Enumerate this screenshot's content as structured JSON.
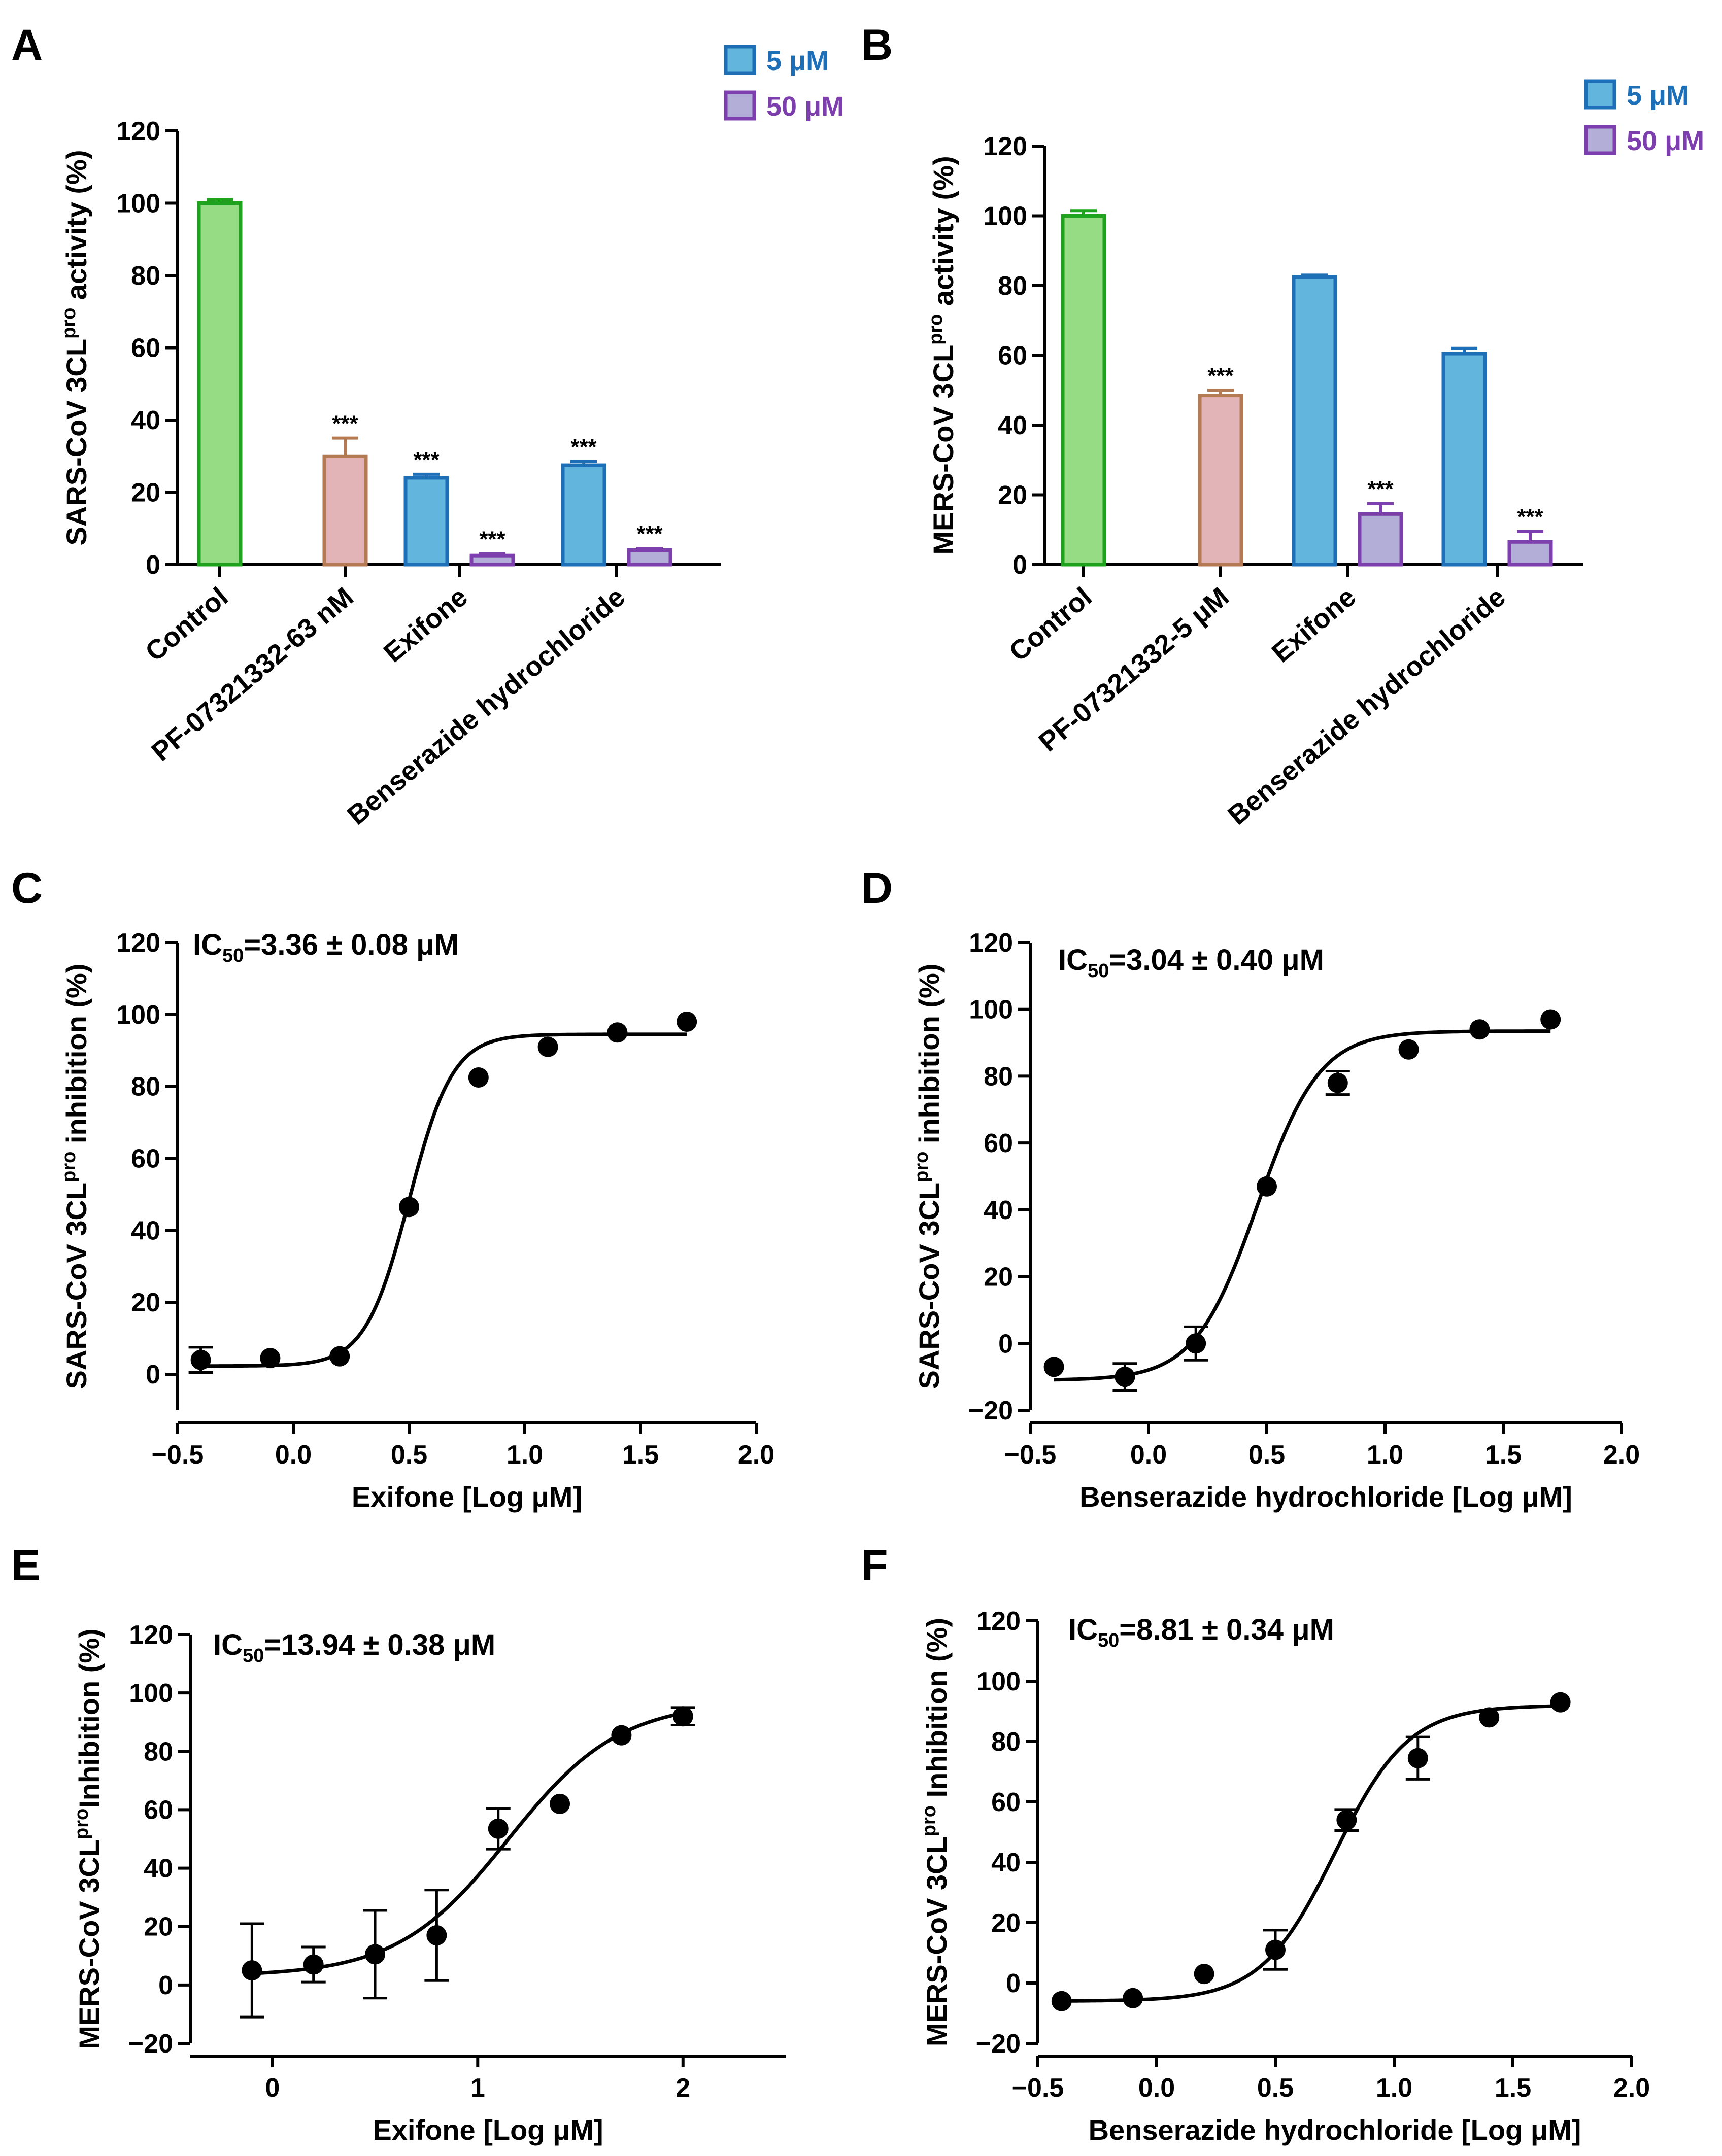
{
  "colors": {
    "control_fill": "#95DC84",
    "control_stroke": "#1FA31F",
    "pf_fill": "#E2B3B7",
    "pf_stroke": "#B47A53",
    "blue_fill": "#62B6DD",
    "blue_stroke": "#1D6FB8",
    "purple_fill": "#B3AED8",
    "purple_stroke": "#7E3FAE",
    "legend_blue_text": "#1D6FB8",
    "legend_purple_text": "#7E3FAE"
  },
  "chart_data": [
    {
      "id": "A",
      "panel": "A",
      "type": "bar",
      "ylabel_main": "SARS-CoV 3CL",
      "ylabel_sup": "pro",
      "ylabel_tail": " activity  (%)",
      "ylim": [
        0,
        120
      ],
      "yticks": [
        "0",
        "20",
        "40",
        "60",
        "80",
        "100",
        "120"
      ],
      "legend": [
        {
          "name": "5 μM",
          "color": "blue"
        },
        {
          "name": "50 μM",
          "color": "purple"
        }
      ],
      "categories": [
        "Control",
        "PF-07321332-63 nM",
        "Exifone",
        "Benserazide hydrochloride"
      ],
      "bars": [
        {
          "group": 0,
          "series": "single",
          "color": "control",
          "value": 100,
          "error": 1,
          "sig": ""
        },
        {
          "group": 1,
          "series": "single",
          "color": "pf",
          "value": 30,
          "error": 5,
          "sig": "***"
        },
        {
          "group": 2,
          "series": "5 μM",
          "color": "blue",
          "value": 24,
          "error": 1,
          "sig": "***"
        },
        {
          "group": 2,
          "series": "50 μM",
          "color": "purple",
          "value": 2.5,
          "error": 0.5,
          "sig": "***"
        },
        {
          "group": 3,
          "series": "5 μM",
          "color": "blue",
          "value": 27.5,
          "error": 1,
          "sig": "***"
        },
        {
          "group": 3,
          "series": "50 μM",
          "color": "purple",
          "value": 4,
          "error": 0.5,
          "sig": "***"
        }
      ]
    },
    {
      "id": "B",
      "panel": "B",
      "type": "bar",
      "ylabel_main": "MERS-CoV 3CL",
      "ylabel_sup": "pro",
      "ylabel_tail": " activity (%)",
      "ylim": [
        0,
        120
      ],
      "yticks": [
        "0",
        "20",
        "40",
        "60",
        "80",
        "100",
        "120"
      ],
      "legend": [
        {
          "name": "5 μM",
          "color": "blue"
        },
        {
          "name": "50 μM",
          "color": "purple"
        }
      ],
      "categories": [
        "Control",
        "PF-07321332-5 μM",
        "Exifone",
        "Benserazide hydrochloride"
      ],
      "bars": [
        {
          "group": 0,
          "series": "single",
          "color": "control",
          "value": 100,
          "error": 1.5,
          "sig": ""
        },
        {
          "group": 1,
          "series": "single",
          "color": "pf",
          "value": 48.5,
          "error": 1.5,
          "sig": "***"
        },
        {
          "group": 2,
          "series": "5 μM",
          "color": "blue",
          "value": 82.5,
          "error": 0.5,
          "sig": ""
        },
        {
          "group": 2,
          "series": "50 μM",
          "color": "purple",
          "value": 14.5,
          "error": 3,
          "sig": "***"
        },
        {
          "group": 3,
          "series": "5 μM",
          "color": "blue",
          "value": 60.5,
          "error": 1.5,
          "sig": ""
        },
        {
          "group": 3,
          "series": "50 μM",
          "color": "purple",
          "value": 6.5,
          "error": 3,
          "sig": "***"
        }
      ]
    },
    {
      "id": "C",
      "panel": "C",
      "type": "scatter",
      "ic50_main": "IC",
      "ic50_sub": "50",
      "ic50_value": "=3.36 ± 0.08 μM",
      "ylabel_main": "SARS-CoV 3CL",
      "ylabel_sup": "pro",
      "ylabel_tail": " inhibition  (%)",
      "xlabel": "Exifone [Log μM]",
      "xlim": [
        -0.5,
        2.0
      ],
      "xticks": [
        "−0.5",
        "0.0",
        "0.5",
        "1.0",
        "1.5",
        "2.0"
      ],
      "ylim": [
        -10,
        120
      ],
      "yticks": [
        "0",
        "20",
        "40",
        "60",
        "80",
        "100",
        "120"
      ],
      "points": [
        {
          "x": -0.4,
          "y": 4,
          "err": 3.5
        },
        {
          "x": -0.1,
          "y": 4.5,
          "err": 0
        },
        {
          "x": 0.2,
          "y": 5,
          "err": 0
        },
        {
          "x": 0.5,
          "y": 46.5,
          "err": 0
        },
        {
          "x": 0.8,
          "y": 82.5,
          "err": 0
        },
        {
          "x": 1.1,
          "y": 91,
          "err": 0
        },
        {
          "x": 1.4,
          "y": 95,
          "err": 0
        },
        {
          "x": 1.7,
          "y": 98,
          "err": 0
        }
      ],
      "fit": {
        "bottom": 2.3,
        "top": 94.5,
        "logec50": 0.5,
        "hill": 4.6,
        "xmin": -0.4,
        "xmax": 1.7
      }
    },
    {
      "id": "D",
      "panel": "D",
      "type": "scatter",
      "ic50_main": "IC",
      "ic50_sub": "50",
      "ic50_value": "=3.04 ± 0.40 μM",
      "ylabel_main": "SARS-CoV 3CL",
      "ylabel_sup": "pro",
      "ylabel_tail": " inhibition  (%)",
      "xlabel": "Benserazide hydrochloride [Log μM]",
      "xlim": [
        -0.5,
        2.0
      ],
      "xticks": [
        "−0.5",
        "0.0",
        "0.5",
        "1.0",
        "1.5",
        "2.0"
      ],
      "ylim": [
        -20,
        120
      ],
      "yticks": [
        "−20",
        "0",
        "20",
        "40",
        "60",
        "80",
        "100",
        "120"
      ],
      "points": [
        {
          "x": -0.4,
          "y": -7,
          "err": 0
        },
        {
          "x": -0.1,
          "y": -10,
          "err": 4
        },
        {
          "x": 0.2,
          "y": 0,
          "err": 5
        },
        {
          "x": 0.5,
          "y": 47,
          "err": 0
        },
        {
          "x": 0.8,
          "y": 78,
          "err": 3.5
        },
        {
          "x": 1.1,
          "y": 88,
          "err": 0
        },
        {
          "x": 1.4,
          "y": 94,
          "err": 0
        },
        {
          "x": 1.7,
          "y": 97,
          "err": 0
        }
      ],
      "fit": {
        "bottom": -11,
        "top": 93.5,
        "logec50": 0.46,
        "hill": 3.3,
        "xmin": -0.4,
        "xmax": 1.7
      }
    },
    {
      "id": "E",
      "panel": "E",
      "type": "scatter",
      "ic50_main": "IC",
      "ic50_sub": "50",
      "ic50_value": "=13.94 ± 0.38 μM",
      "ylabel_main": "MERS-CoV 3CL",
      "ylabel_sup": "pro",
      "ylabel_tail": "Inhibition (%)",
      "xlabel": "Exifone [Log μM]",
      "xlim": [
        -0.4,
        2.5
      ],
      "xticks": [
        "0",
        "1",
        "2"
      ],
      "xtick_values": [
        0,
        1,
        2
      ],
      "ylim": [
        -20,
        120
      ],
      "yticks": [
        "−20",
        "0",
        "20",
        "40",
        "60",
        "80",
        "100",
        "120"
      ],
      "points": [
        {
          "x": -0.1,
          "y": 5,
          "err": 16
        },
        {
          "x": 0.2,
          "y": 7,
          "err": 6
        },
        {
          "x": 0.5,
          "y": 10.5,
          "err": 15
        },
        {
          "x": 0.8,
          "y": 17,
          "err": 15.5
        },
        {
          "x": 1.1,
          "y": 53.5,
          "err": 7
        },
        {
          "x": 1.4,
          "y": 62,
          "err": 0
        },
        {
          "x": 1.7,
          "y": 85.5,
          "err": 0
        },
        {
          "x": 2.0,
          "y": 92,
          "err": 3
        }
      ],
      "fit": {
        "bottom": 3,
        "top": 97,
        "logec50": 1.15,
        "hill": 1.6,
        "xmin": -0.1,
        "xmax": 2.0
      }
    },
    {
      "id": "F",
      "panel": "F",
      "type": "scatter",
      "ic50_main": "IC",
      "ic50_sub": "50",
      "ic50_value": "=8.81 ± 0.34 μM",
      "ylabel_main": "MERS-CoV 3CL",
      "ylabel_sup": "pro",
      "ylabel_tail": " Inhibition (%)",
      "xlabel": "Benserazide hydrochloride [Log μM]",
      "xlim": [
        -0.5,
        2.0
      ],
      "xticks": [
        "−0.5",
        "0.0",
        "0.5",
        "1.0",
        "1.5",
        "2.0"
      ],
      "ylim": [
        -20,
        120
      ],
      "yticks": [
        "−20",
        "0",
        "20",
        "40",
        "60",
        "80",
        "100",
        "120"
      ],
      "points": [
        {
          "x": -0.4,
          "y": -6,
          "err": 0
        },
        {
          "x": -0.1,
          "y": -5,
          "err": 0
        },
        {
          "x": 0.2,
          "y": 3,
          "err": 0
        },
        {
          "x": 0.5,
          "y": 11,
          "err": 6.5
        },
        {
          "x": 0.8,
          "y": 54,
          "err": 3.5
        },
        {
          "x": 1.1,
          "y": 74.5,
          "err": 7
        },
        {
          "x": 1.4,
          "y": 88,
          "err": 0
        },
        {
          "x": 1.7,
          "y": 93,
          "err": 0
        }
      ],
      "fit": {
        "bottom": -6,
        "top": 92,
        "logec50": 0.75,
        "hill": 2.8,
        "xmin": -0.4,
        "xmax": 1.7
      }
    }
  ]
}
